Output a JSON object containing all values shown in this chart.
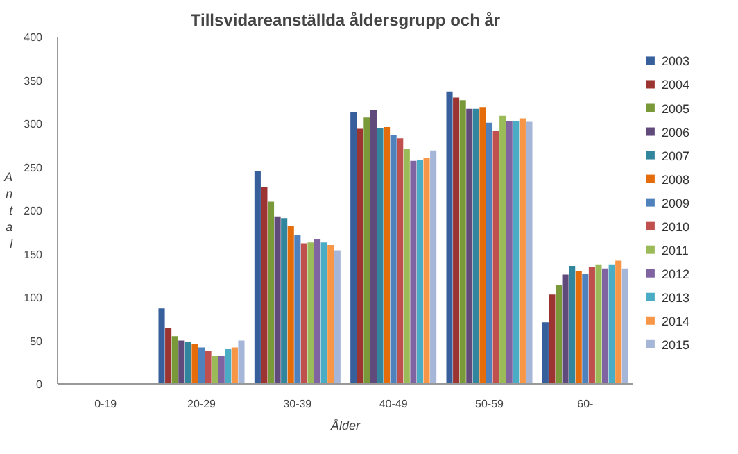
{
  "chart_data": {
    "type": "bar",
    "title": "Tillsvidareanställda åldersgrupp och år",
    "xlabel": "Ålder",
    "ylabel": "Antal",
    "categories": [
      "0-19",
      "20-29",
      "30-39",
      "40-49",
      "50-59",
      "60-"
    ],
    "ylim": [
      0,
      400
    ],
    "yticks": [
      0,
      50,
      100,
      150,
      200,
      250,
      300,
      350,
      400
    ],
    "grid": false,
    "legend": "right",
    "series": [
      {
        "name": "2003",
        "color": "#365f9c",
        "values": [
          0,
          87,
          245,
          313,
          337,
          71
        ]
      },
      {
        "name": "2004",
        "color": "#9c3532",
        "values": [
          0,
          64,
          227,
          294,
          330,
          103
        ]
      },
      {
        "name": "2005",
        "color": "#7a9a3a",
        "values": [
          0,
          55,
          210,
          307,
          327,
          114
        ]
      },
      {
        "name": "2006",
        "color": "#604a7b",
        "values": [
          0,
          50,
          193,
          316,
          317,
          126
        ]
      },
      {
        "name": "2007",
        "color": "#31859c",
        "values": [
          0,
          48,
          191,
          295,
          317,
          136
        ]
      },
      {
        "name": "2008",
        "color": "#e46c0a",
        "values": [
          0,
          46,
          182,
          296,
          319,
          130
        ]
      },
      {
        "name": "2009",
        "color": "#4f81bd",
        "values": [
          0,
          42,
          172,
          287,
          301,
          127
        ]
      },
      {
        "name": "2010",
        "color": "#c0504d",
        "values": [
          0,
          38,
          162,
          283,
          292,
          135
        ]
      },
      {
        "name": "2011",
        "color": "#9bbb59",
        "values": [
          0,
          32,
          163,
          271,
          309,
          137
        ]
      },
      {
        "name": "2012",
        "color": "#8064a2",
        "values": [
          0,
          32,
          167,
          257,
          303,
          133
        ]
      },
      {
        "name": "2013",
        "color": "#4bacc6",
        "values": [
          0,
          40,
          163,
          258,
          303,
          137
        ]
      },
      {
        "name": "2014",
        "color": "#f79646",
        "values": [
          0,
          42,
          160,
          260,
          306,
          142
        ]
      },
      {
        "name": "2015",
        "color": "#a5b6d8",
        "values": [
          0,
          50,
          154,
          269,
          302,
          133
        ]
      }
    ]
  }
}
